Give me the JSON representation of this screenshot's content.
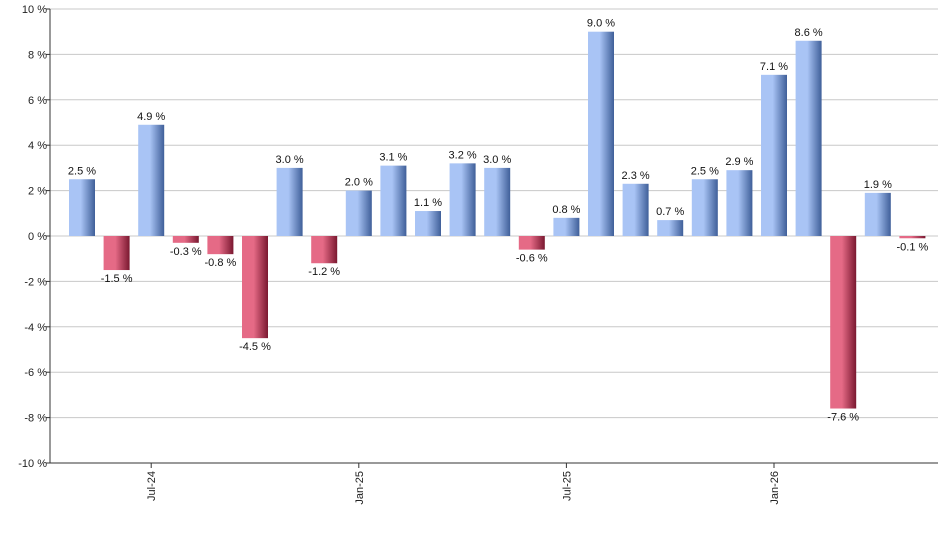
{
  "chart_data": {
    "type": "bar",
    "title": "",
    "xlabel": "",
    "ylabel": "",
    "ylim": [
      -10,
      10
    ],
    "y_ticks": [
      -10,
      -8,
      -6,
      -4,
      -2,
      0,
      2,
      4,
      6,
      8,
      10
    ],
    "y_tick_labels": [
      "-10 %",
      "-8 %",
      "-6 %",
      "-4 %",
      "-2 %",
      "0 %",
      "2 %",
      "4 %",
      "6 %",
      "8 %",
      "10 %"
    ],
    "grid": "horizontal",
    "legend": "none",
    "x_tick_labels": [
      {
        "label": "Jul-24",
        "index": 2
      },
      {
        "label": "Jan-25",
        "index": 8
      },
      {
        "label": "Jul-25",
        "index": 14
      },
      {
        "label": "Jan-26",
        "index": 20
      }
    ],
    "values": [
      2.5,
      -1.5,
      4.9,
      -0.3,
      -0.8,
      -4.5,
      3.0,
      -1.2,
      2.0,
      3.1,
      1.1,
      3.2,
      3.0,
      -0.6,
      0.8,
      9.0,
      2.3,
      0.7,
      2.5,
      2.9,
      7.1,
      8.6,
      -7.6,
      1.9,
      -0.1
    ],
    "value_labels": [
      "2.5 %",
      "-1.5 %",
      "4.9 %",
      "-0.3 %",
      "-0.8 %",
      "-4.5 %",
      "3.0 %",
      "-1.2 %",
      "2.0 %",
      "3.1 %",
      "1.1 %",
      "3.2 %",
      "3.0 %",
      "-0.6 %",
      "0.8 %",
      "9.0 %",
      "2.3 %",
      "0.7 %",
      "2.5 %",
      "2.9 %",
      "7.1 %",
      "8.6 %",
      "-7.6 %",
      "1.9 %",
      "-0.1 %"
    ],
    "colors": {
      "positive_light": "#a9c4f5",
      "positive_dark": "#3f5f99",
      "negative_light": "#e56a86",
      "negative_dark": "#7a1830",
      "grid": "#c8c8c8",
      "axis": "#333333"
    }
  }
}
